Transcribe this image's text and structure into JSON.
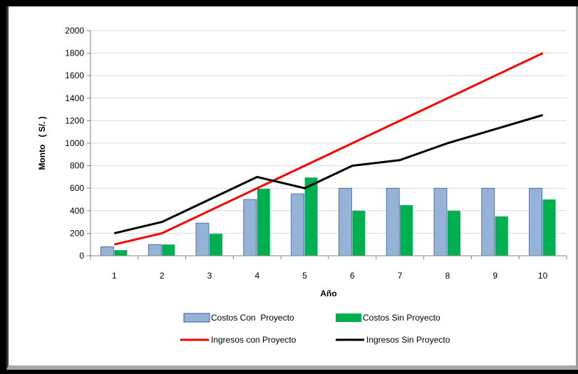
{
  "colors": {
    "costos_con": "#95b3d7",
    "costos_con_border": "#3b5aa0",
    "costos_sin": "#00b050",
    "ingresos_con": "#ff0000",
    "ingresos_sin": "#000000",
    "grid": "#d9d9d9"
  },
  "chart_data": {
    "type": "bar",
    "categories": [
      "1",
      "2",
      "3",
      "4",
      "5",
      "6",
      "7",
      "8",
      "9",
      "10"
    ],
    "xlabel": "Año",
    "ylabel": "Monto   ( S/. )",
    "ylim": [
      0,
      2000
    ],
    "yticks": [
      "0",
      "200",
      "400",
      "600",
      "800",
      "1000",
      "1200",
      "1400",
      "1600",
      "1800",
      "2000"
    ],
    "grid": true,
    "legend_position": "bottom",
    "series": [
      {
        "name": "Costos Con  Proyecto",
        "kind": "bar",
        "values": [
          80,
          100,
          290,
          500,
          550,
          600,
          600,
          600,
          600,
          600
        ]
      },
      {
        "name": "Costos Sin Proyecto",
        "kind": "bar",
        "values": [
          50,
          100,
          195,
          595,
          695,
          400,
          450,
          400,
          350,
          500
        ]
      },
      {
        "name": "Ingresos con Proyecto",
        "kind": "line",
        "values": [
          100,
          200,
          400,
          600,
          800,
          1000,
          1200,
          1400,
          1600,
          1800
        ]
      },
      {
        "name": "Ingresos Sin Proyecto",
        "kind": "line",
        "values": [
          200,
          300,
          500,
          700,
          600,
          800,
          850,
          1000,
          1125,
          1250
        ]
      }
    ]
  }
}
